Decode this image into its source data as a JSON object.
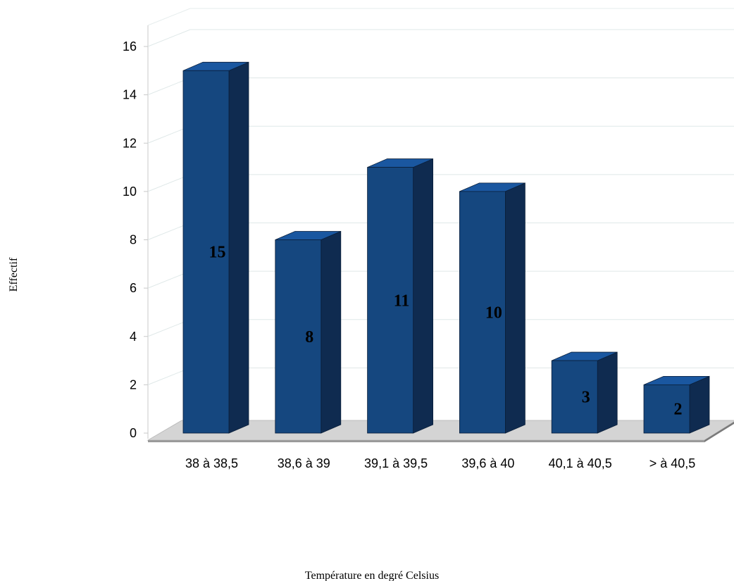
{
  "chart_data": {
    "type": "bar",
    "categories": [
      "38 à 38,5",
      "38,6 à 39",
      "39,1 à 39,5",
      "39,6 à 40",
      "40,1 à 40,5",
      "> à 40,5"
    ],
    "values": [
      15,
      8,
      11,
      10,
      3,
      2
    ],
    "data_labels": [
      "15",
      "8",
      "11",
      "10",
      "3",
      "2"
    ],
    "xlabel": "Température en degré Celsius",
    "ylabel": "Effectif",
    "ylim": [
      0,
      16
    ],
    "yticks": [
      "0",
      "2",
      "4",
      "6",
      "8",
      "10",
      "12",
      "14",
      "16"
    ],
    "grid": true,
    "legend": "none",
    "style_3d": true,
    "colors": {
      "bar_front": "#15477f",
      "bar_side": "#0f2b50",
      "bar_top": "#1a57a0",
      "floor": "#d4d4d4",
      "gridline": "#dfe8e8"
    }
  }
}
